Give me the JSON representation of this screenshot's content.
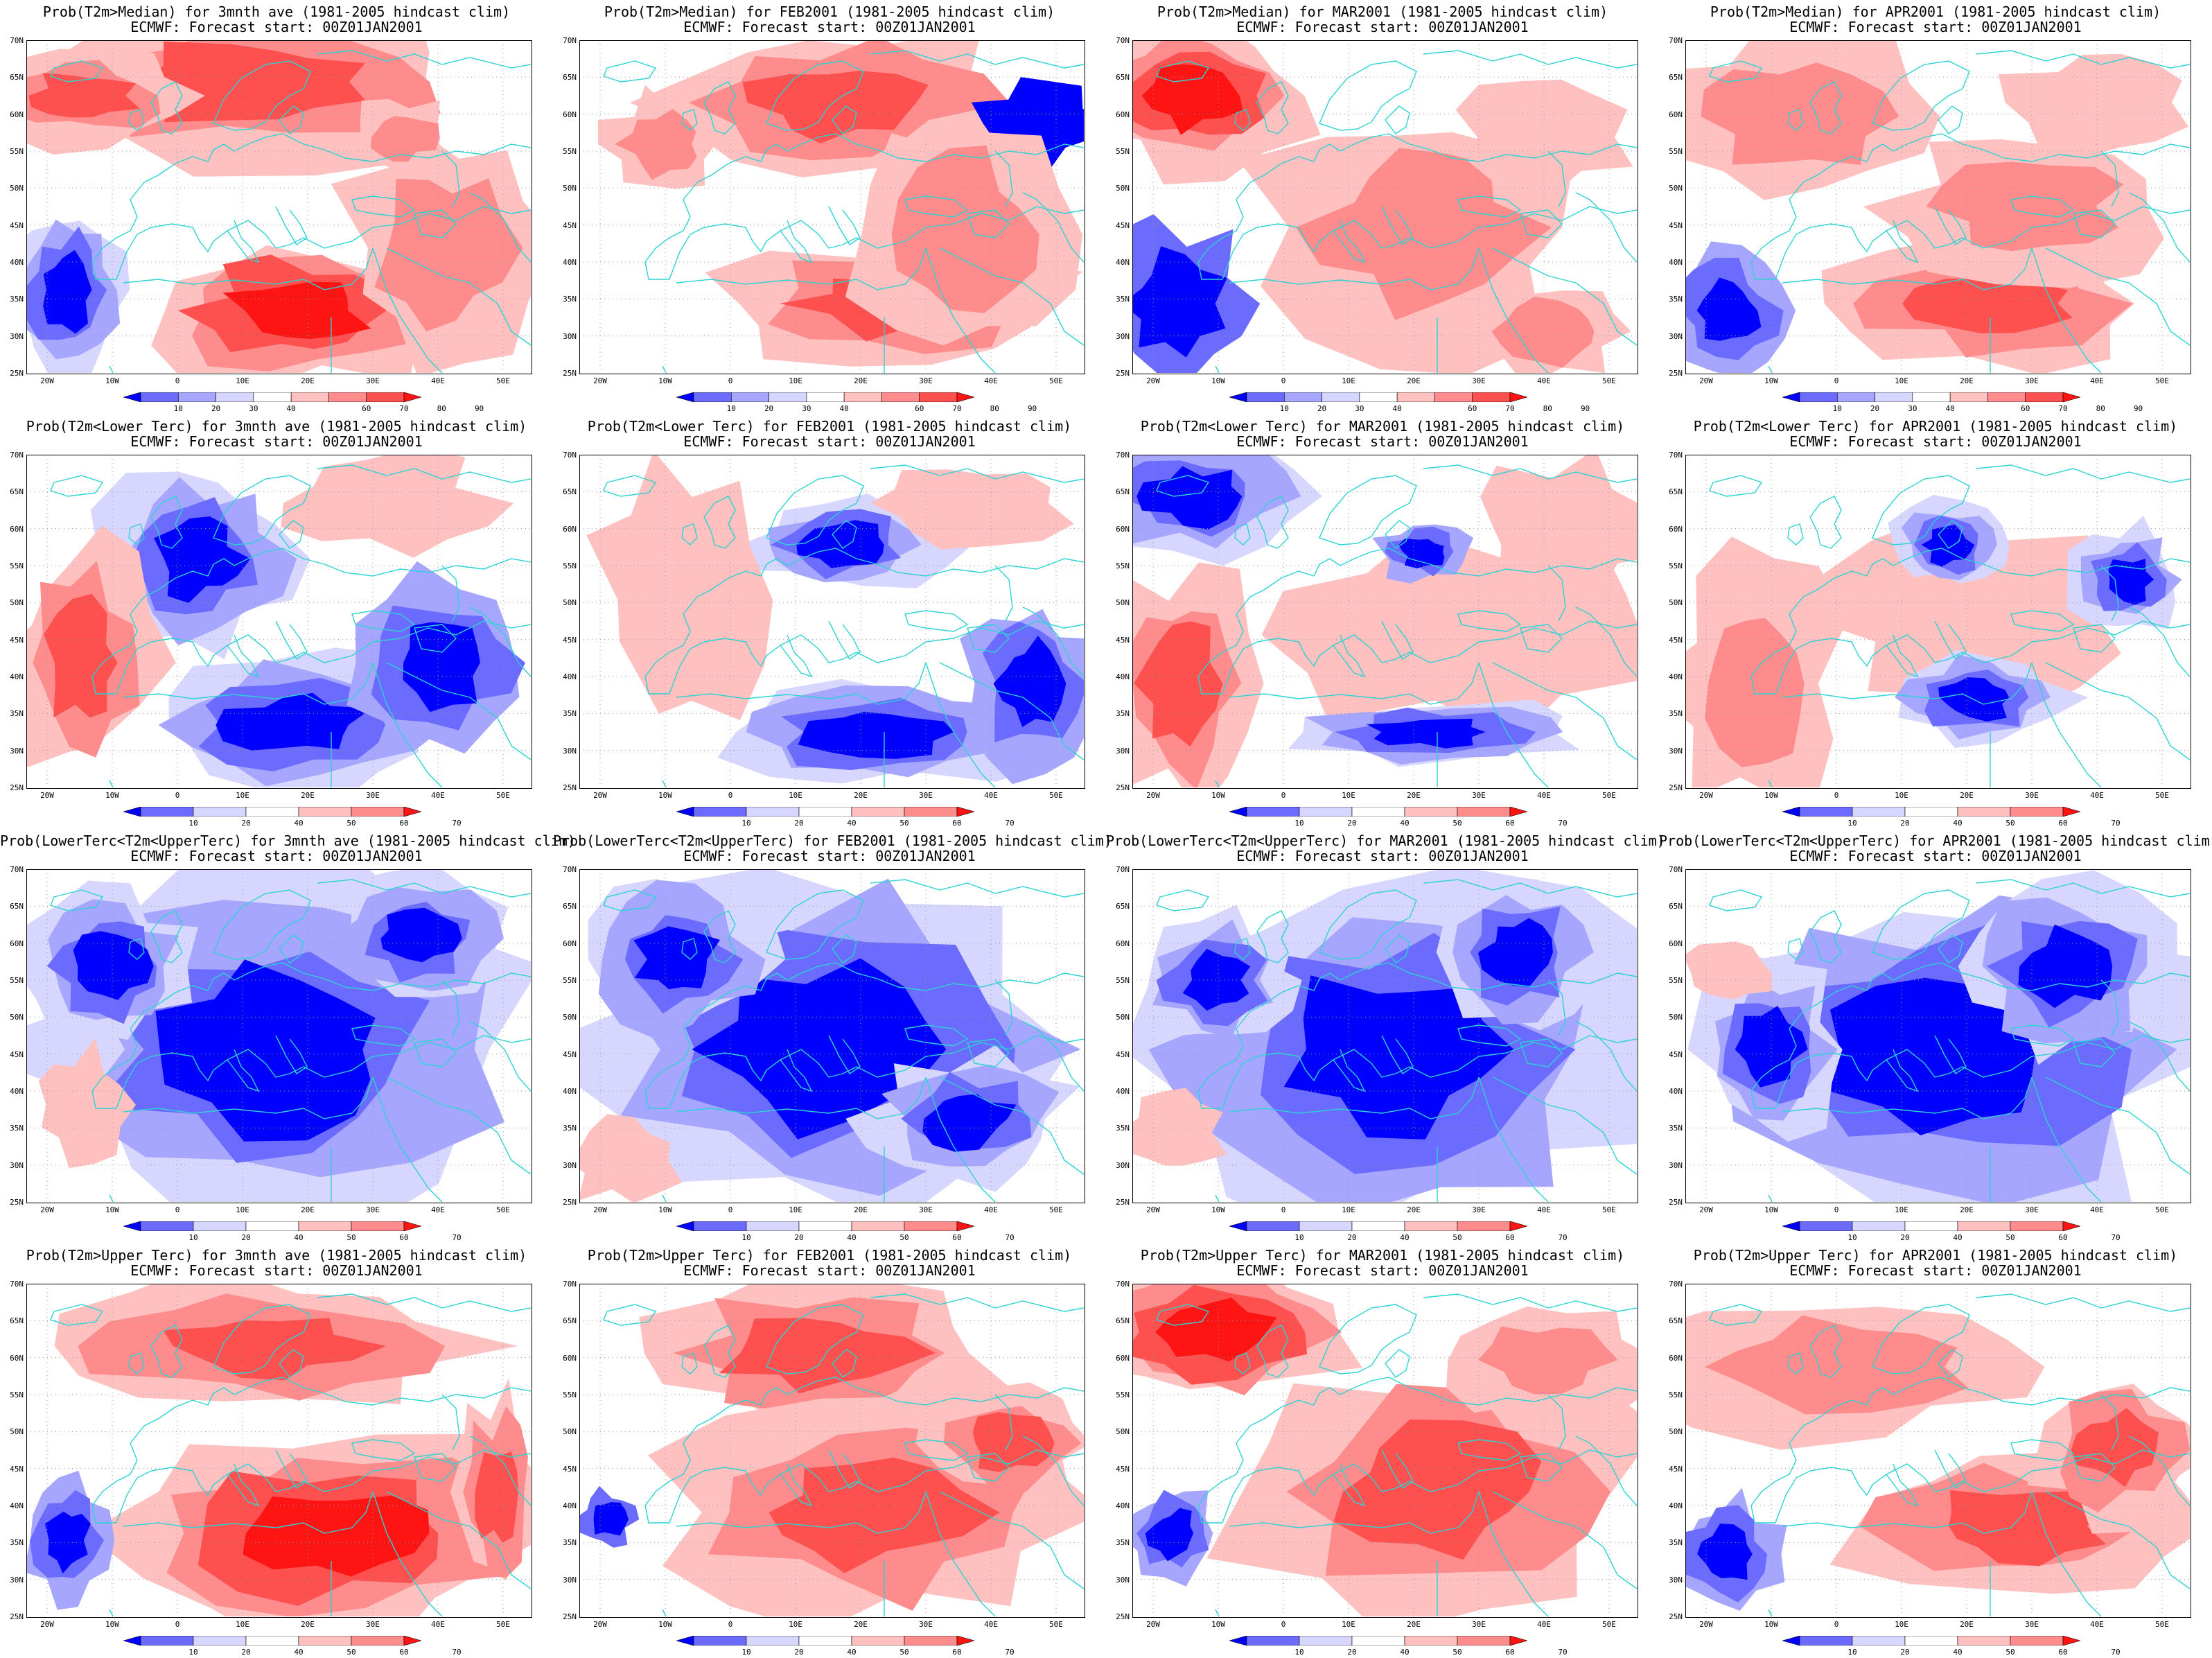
{
  "forecast_line": "ECMWF: Forecast start: 00Z01JAN2001",
  "colors": {
    "blue_dark": "#0000ff",
    "blue_mid": "#6b6bff",
    "blue_light": "#a6a6ff",
    "blue_pale": "#d6d6ff",
    "red_pale": "#ffc0c0",
    "red_light": "#ff8c8c",
    "red_mid": "#ff5050",
    "red_dark": "#ff1414",
    "coast": "#2cd3d3"
  },
  "latitude_labels": [
    "70N",
    "65N",
    "60N",
    "55N",
    "50N",
    "45N",
    "40N",
    "35N",
    "30N",
    "25N"
  ],
  "longitude_labels": [
    "20W",
    "10W",
    "0",
    "10E",
    "20E",
    "30E",
    "40E",
    "50E"
  ],
  "rows": [
    {
      "name": "median",
      "legend_labels": [
        "10",
        "20",
        "30",
        "40",
        "60",
        "70",
        "80",
        "90"
      ],
      "panels": [
        {
          "title": "Prob(T2m>Median) for 3mnth ave (1981-2005 hindcast clim)",
          "pattern": 0
        },
        {
          "title": "Prob(T2m>Median) for FEB2001 (1981-2005 hindcast clim)",
          "pattern": 1
        },
        {
          "title": "Prob(T2m>Median) for MAR2001 (1981-2005 hindcast clim)",
          "pattern": 2
        },
        {
          "title": "Prob(T2m>Median) for APR2001 (1981-2005 hindcast clim)",
          "pattern": 3
        }
      ]
    },
    {
      "name": "lower",
      "legend_labels": [
        "10",
        "20",
        "40",
        "50",
        "60",
        "70"
      ],
      "panels": [
        {
          "title": "Prob(T2m<Lower Terc) for 3mnth ave (1981-2005 hindcast clim)",
          "pattern": 4
        },
        {
          "title": "Prob(T2m<Lower Terc) for FEB2001 (1981-2005 hindcast clim)",
          "pattern": 5
        },
        {
          "title": "Prob(T2m<Lower Terc) for MAR2001 (1981-2005 hindcast clim)",
          "pattern": 6
        },
        {
          "title": "Prob(T2m<Lower Terc) for APR2001 (1981-2005 hindcast clim)",
          "pattern": 7
        }
      ]
    },
    {
      "name": "middle",
      "legend_labels": [
        "10",
        "20",
        "40",
        "50",
        "60",
        "70"
      ],
      "panels": [
        {
          "title": "Prob(LowerTerc<T2m<UpperTerc) for 3mnth ave (1981-2005 hindcast clim)",
          "pattern": 8
        },
        {
          "title": "Prob(LowerTerc<T2m<UpperTerc) for FEB2001 (1981-2005 hindcast clim)",
          "pattern": 9
        },
        {
          "title": "Prob(LowerTerc<T2m<UpperTerc) for MAR2001 (1981-2005 hindcast clim)",
          "pattern": 10
        },
        {
          "title": "Prob(LowerTerc<T2m<UpperTerc) for APR2001 (1981-2005 hindcast clim)",
          "pattern": 11
        }
      ]
    },
    {
      "name": "upper",
      "legend_labels": [
        "10",
        "20",
        "40",
        "50",
        "60",
        "70"
      ],
      "panels": [
        {
          "title": "Prob(T2m>Upper Terc) for 3mnth ave (1981-2005 hindcast clim)",
          "pattern": 12
        },
        {
          "title": "Prob(T2m>Upper Terc) for FEB2001 (1981-2005 hindcast clim)",
          "pattern": 13
        },
        {
          "title": "Prob(T2m>Upper Terc) for MAR2001 (1981-2005 hindcast clim)",
          "pattern": 14
        },
        {
          "title": "Prob(T2m>Upper Terc) for APR2001 (1981-2005 hindcast clim)",
          "pattern": 15
        }
      ]
    }
  ]
}
